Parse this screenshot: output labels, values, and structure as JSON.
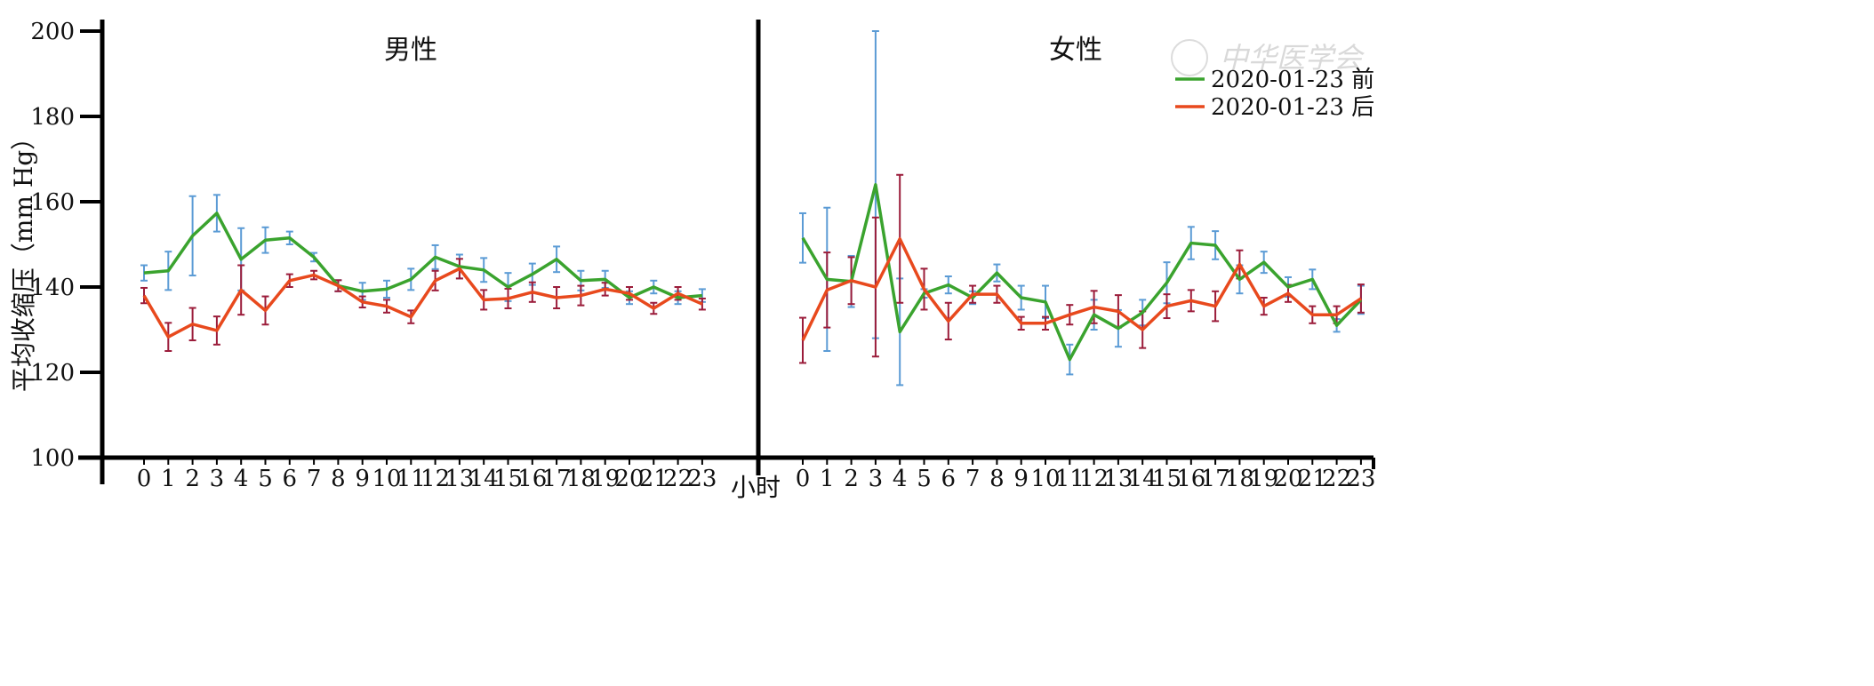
{
  "chart_data": {
    "type": "line",
    "ylabel": "平均收缩压（mm Hg）",
    "xlabel": "小时",
    "ylim": [
      100,
      200
    ],
    "yticks": [
      100,
      120,
      140,
      160,
      180,
      200
    ],
    "x": [
      0,
      1,
      2,
      3,
      4,
      5,
      6,
      7,
      8,
      9,
      10,
      11,
      12,
      13,
      14,
      15,
      16,
      17,
      18,
      19,
      20,
      21,
      22,
      23
    ],
    "legend_position": "top-right",
    "watermark": "中华医学会",
    "series_styles": [
      {
        "name": "2020-01-23 前",
        "color": "#3aa32e",
        "error_color": "#5b9bd5"
      },
      {
        "name": "2020-01-23 后",
        "color": "#e8491d",
        "error_color": "#9b1c3a"
      }
    ],
    "panels": [
      {
        "title": "男性",
        "series": [
          {
            "name": "2020-01-23 前",
            "values": [
              143.3,
              143.8,
              152.0,
              157.3,
              146.5,
              151.0,
              151.5,
              147.0,
              140.3,
              139.0,
              139.5,
              141.8,
              147.0,
              144.8,
              144.0,
              140.0,
              143.0,
              146.5,
              141.5,
              141.8,
              137.5,
              140.0,
              137.5,
              138.0
            ],
            "err": [
              1.8,
              4.5,
              9.3,
              4.3,
              7.3,
              3.0,
              1.5,
              1.0,
              1.3,
              2.0,
              2.0,
              2.5,
              2.8,
              2.8,
              2.8,
              3.3,
              2.5,
              3.0,
              2.3,
              2.0,
              1.5,
              1.5,
              1.5,
              1.5
            ]
          },
          {
            "name": "2020-01-23 后",
            "values": [
              138.0,
              128.3,
              131.3,
              129.8,
              139.3,
              134.5,
              141.5,
              142.8,
              140.3,
              136.5,
              135.5,
              133.0,
              141.5,
              144.3,
              137.0,
              137.3,
              138.8,
              137.5,
              138.0,
              139.5,
              138.5,
              135.0,
              138.5,
              136.0
            ],
            "err": [
              1.8,
              3.3,
              3.8,
              3.3,
              5.8,
              3.3,
              1.5,
              1.0,
              1.3,
              1.3,
              1.5,
              1.5,
              2.3,
              2.3,
              2.3,
              2.3,
              2.3,
              2.5,
              2.3,
              1.5,
              1.5,
              1.3,
              1.5,
              1.3
            ]
          }
        ]
      },
      {
        "title": "女性",
        "series": [
          {
            "name": "2020-01-23 前",
            "values": [
              151.5,
              141.8,
              141.3,
              164.0,
              129.5,
              138.5,
              140.5,
              137.5,
              143.3,
              137.5,
              136.5,
              123.0,
              133.5,
              130.3,
              134.0,
              141.0,
              150.3,
              149.8,
              141.8,
              145.8,
              140.0,
              141.8,
              131.0,
              137.0
            ],
            "err": [
              5.8,
              16.8,
              6.0,
              36.0,
              12.5,
              1.0,
              2.0,
              1.5,
              2.0,
              2.8,
              3.8,
              3.5,
              3.5,
              4.3,
              3.0,
              4.8,
              3.8,
              3.3,
              3.3,
              2.5,
              2.3,
              2.3,
              1.5,
              3.3
            ]
          },
          {
            "name": "2020-01-23 后",
            "values": [
              127.5,
              139.3,
              141.5,
              140.0,
              151.3,
              139.5,
              132.0,
              138.3,
              138.3,
              131.5,
              131.5,
              133.5,
              135.3,
              134.3,
              130.0,
              135.5,
              136.8,
              135.5,
              145.3,
              135.5,
              138.5,
              133.5,
              133.5,
              137.3
            ],
            "err": [
              5.3,
              8.8,
              5.5,
              16.3,
              15.0,
              4.8,
              4.3,
              2.0,
              2.0,
              1.5,
              1.5,
              2.3,
              3.8,
              3.8,
              4.3,
              2.8,
              2.5,
              3.5,
              3.3,
              2.0,
              2.0,
              2.0,
              2.0,
              3.3
            ]
          }
        ]
      }
    ]
  }
}
